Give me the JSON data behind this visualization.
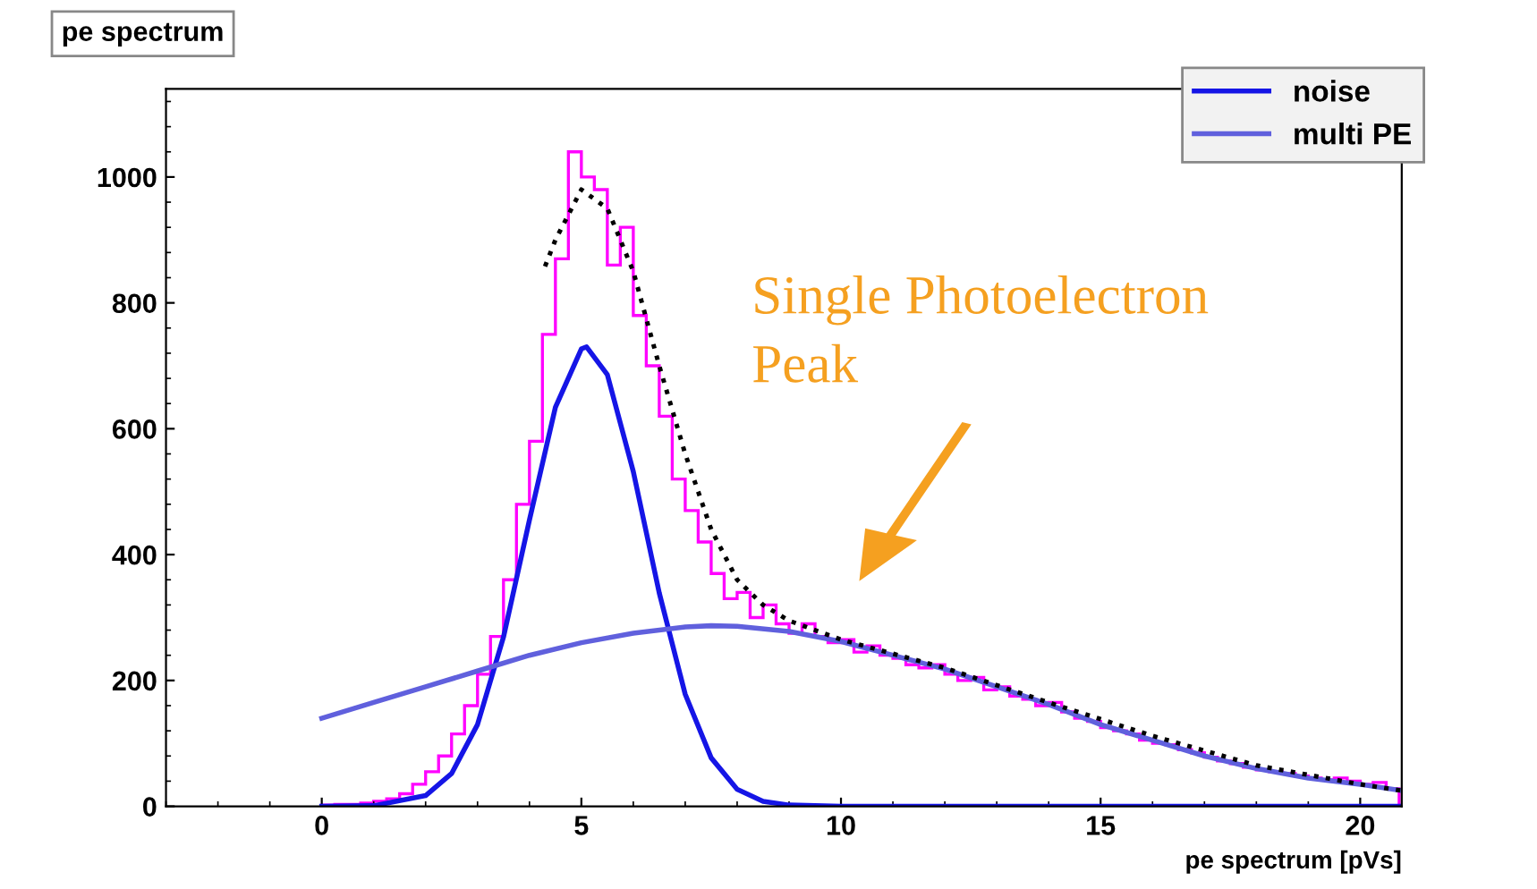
{
  "chart_data": {
    "type": "histogram",
    "title": "pe spectrum",
    "xlabel": "pe spectrum [pVs]",
    "xlim": [
      -3,
      20.8
    ],
    "ylim": [
      0,
      1140
    ],
    "xticks": [
      0,
      5,
      10,
      15,
      20
    ],
    "yticks": [
      0,
      200,
      400,
      600,
      800,
      1000
    ],
    "grid": false,
    "legend": "top right",
    "annotations": [
      "Single Photoelectron\nPeak"
    ],
    "series": [
      {
        "color": "#ff00ff",
        "bins": [
          0,
          0.25,
          0.5,
          0.75,
          1,
          1.25,
          1.5,
          1.75,
          2,
          2.25,
          2.5,
          2.75,
          3,
          3.25,
          3.5,
          3.75,
          4,
          4.25,
          4.5,
          4.75,
          5,
          5.25,
          5.5,
          5.75,
          6,
          6.25,
          6.5,
          6.75,
          7,
          7.25,
          7.5,
          7.75,
          8,
          8.25,
          8.5,
          8.75,
          9,
          9.25,
          9.5,
          9.75,
          10,
          10.25,
          10.5,
          10.75,
          11,
          11.25,
          11.5,
          11.75,
          12,
          12.25,
          12.5,
          12.75,
          13,
          13.25,
          13.5,
          13.75,
          14,
          14.25,
          14.5,
          14.75,
          15,
          15.25,
          15.5,
          15.75,
          16,
          16.25,
          16.5,
          16.75,
          17,
          17.25,
          17.5,
          17.75,
          18,
          18.25,
          18.5,
          18.75,
          19,
          19.25,
          19.5,
          19.75,
          20,
          20.25,
          20.5,
          20.75
        ],
        "values": [
          2,
          3,
          3,
          5,
          8,
          12,
          20,
          35,
          55,
          80,
          115,
          160,
          210,
          270,
          360,
          480,
          580,
          750,
          870,
          1040,
          1000,
          980,
          860,
          920,
          780,
          700,
          620,
          520,
          470,
          420,
          370,
          330,
          340,
          300,
          320,
          290,
          275,
          290,
          270,
          260,
          265,
          245,
          255,
          240,
          235,
          225,
          220,
          225,
          210,
          200,
          205,
          185,
          190,
          175,
          170,
          160,
          165,
          150,
          140,
          135,
          125,
          120,
          115,
          105,
          100,
          98,
          90,
          85,
          78,
          72,
          68,
          62,
          58,
          55,
          52,
          48,
          45,
          42,
          45,
          40,
          35,
          38,
          28
        ]
      },
      {
        "type": "line",
        "name": "noise",
        "color": "#1515e6",
        "line_style": "solid",
        "x": [
          0,
          1,
          2,
          2.5,
          3,
          3.5,
          4,
          4.5,
          5,
          5.1,
          5.5,
          6,
          6.5,
          7,
          7.5,
          8,
          8.5,
          9,
          10,
          20.8
        ],
        "values": [
          0,
          1,
          17,
          52,
          130,
          269,
          455,
          634,
          727,
          730,
          686,
          532,
          339,
          178,
          77,
          27,
          8,
          2,
          0,
          0
        ]
      },
      {
        "type": "line",
        "name": "multi PE",
        "color": "#6060dd",
        "line_style": "solid",
        "x": [
          0,
          1,
          2,
          3,
          4,
          5,
          6,
          7,
          7.5,
          8,
          9,
          10,
          11,
          12,
          13,
          14,
          15,
          16,
          17,
          18,
          19,
          20,
          20.8
        ],
        "values": [
          140,
          165,
          190,
          215,
          240,
          260,
          275,
          285,
          287,
          286,
          278,
          262,
          240,
          218,
          190,
          162,
          130,
          105,
          80,
          60,
          45,
          35,
          25
        ]
      },
      {
        "type": "line",
        "color": "#000000",
        "line_style": "dotted",
        "x": [
          4.3,
          4.5,
          5,
          5.5,
          6,
          6.5,
          7,
          7.5,
          8,
          8.5,
          9,
          10,
          12,
          14,
          16,
          18,
          20,
          20.8
        ],
        "values": [
          858,
          900,
          980,
          950,
          850,
          700,
          560,
          440,
          360,
          320,
          295,
          265,
          220,
          165,
          112,
          65,
          35,
          25
        ]
      }
    ]
  }
}
